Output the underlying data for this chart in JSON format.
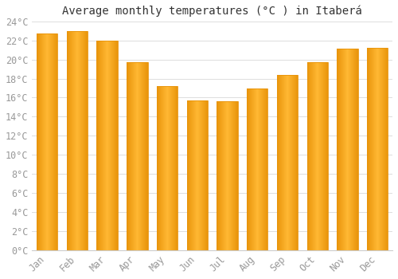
{
  "title": "Average monthly temperatures (°C ) in Itaberá",
  "months": [
    "Jan",
    "Feb",
    "Mar",
    "Apr",
    "May",
    "Jun",
    "Jul",
    "Aug",
    "Sep",
    "Oct",
    "Nov",
    "Dec"
  ],
  "values": [
    22.7,
    23.0,
    22.0,
    19.7,
    17.2,
    15.7,
    15.6,
    17.0,
    18.4,
    19.7,
    21.1,
    21.2
  ],
  "bar_color_center": "#FFB733",
  "bar_color_edge": "#E8930A",
  "background_color": "#FFFFFF",
  "plot_bg_color": "#FFFFFF",
  "grid_color": "#DDDDDD",
  "ylim": [
    0,
    24
  ],
  "ytick_step": 2,
  "title_fontsize": 10,
  "tick_fontsize": 8.5,
  "tick_label_color": "#999999",
  "title_color": "#333333",
  "bar_width": 0.7
}
